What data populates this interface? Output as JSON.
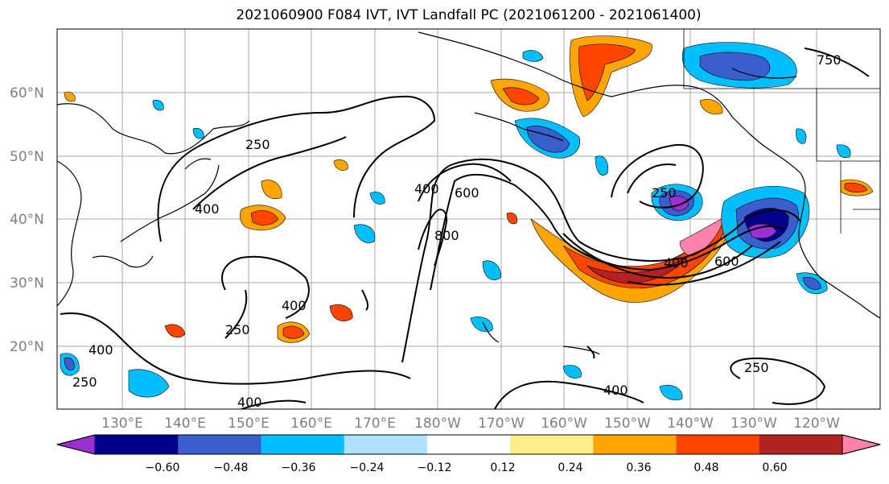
{
  "title": "2021060900 F084 IVT, IVT Landfall PC (2021061200 - 2021061400)",
  "lat_labels": [
    "60°N",
    "50°N",
    "40°N",
    "30°N",
    "20°N"
  ],
  "lon_labels": [
    "130°E",
    "140°E",
    "150°E",
    "160°E",
    "170°E",
    "180°W",
    "170°W",
    "160°W",
    "150°W",
    "140°W",
    "130°W",
    "120°W"
  ],
  "contour_labels": [
    "250",
    "400",
    "250",
    "400",
    "400",
    "600",
    "800",
    "250",
    "400",
    "600",
    "250",
    "400",
    "400",
    "250",
    "400",
    "750"
  ],
  "colorbar": {
    "tick_labels": [
      "−0.60",
      "−0.48",
      "−0.36",
      "−0.24",
      "−0.12",
      "0.12",
      "0.24",
      "0.36",
      "0.48",
      "0.60"
    ],
    "colors": [
      "#9b30d0",
      "#00008b",
      "#3a5fcd",
      "#00bfff",
      "#b0e2ff",
      "#ffffff",
      "#ffec8b",
      "#ffa500",
      "#ff4500",
      "#b22222",
      "#ff82ab"
    ]
  }
}
